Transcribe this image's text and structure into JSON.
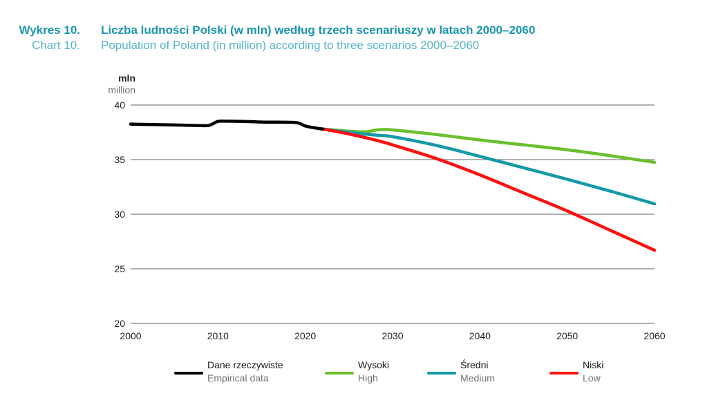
{
  "header": {
    "label_pl": "Wykres 10.",
    "title_pl": "Liczba ludności Polski (w mln) według trzech scenariuszy w latach 2000–2060",
    "label_en": "Chart 10.",
    "title_en": "Population of Poland (in million) according to three scenarios 2000–2060"
  },
  "colors": {
    "title_pl": "#1a95ad",
    "title_en": "#55b3c8",
    "grid": "#808080"
  },
  "chart_data": {
    "type": "line",
    "title": "Liczba ludności Polski (w mln) według trzech scenariuszy w latach 2000–2060 / Population of Poland (in million) according to three scenarios 2000–2060",
    "xlabel": "",
    "ylabel": "mln / million",
    "ylabel_pl": "mln",
    "ylabel_en": "million",
    "xlim": [
      2000,
      2060
    ],
    "ylim": [
      20,
      40
    ],
    "xticks": [
      2000,
      2010,
      2020,
      2030,
      2040,
      2050,
      2060
    ],
    "yticks": [
      20,
      25,
      30,
      35,
      40
    ],
    "grid": "horizontal",
    "legend_position": "bottom",
    "series": [
      {
        "name": "Dane rzeczywiste",
        "name_en": "Empirical data",
        "color": "#000000",
        "x": [
          2000,
          2002,
          2004,
          2006,
          2008,
          2009,
          2010,
          2011,
          2013,
          2015,
          2017,
          2019,
          2020,
          2021,
          2022
        ],
        "values": [
          38.25,
          38.22,
          38.19,
          38.16,
          38.12,
          38.14,
          38.5,
          38.52,
          38.5,
          38.44,
          38.43,
          38.39,
          38.08,
          37.92,
          37.8
        ]
      },
      {
        "name": "Wysoki",
        "name_en": "High",
        "color": "#6abf2f",
        "x": [
          2022,
          2025,
          2027,
          2028,
          2029,
          2030,
          2035,
          2040,
          2045,
          2050,
          2055,
          2060
        ],
        "values": [
          37.8,
          37.6,
          37.55,
          37.7,
          37.75,
          37.72,
          37.3,
          36.8,
          36.35,
          35.9,
          35.35,
          34.75
        ]
      },
      {
        "name": "Średni",
        "name_en": "Medium",
        "color": "#1599a8",
        "x": [
          2022,
          2025,
          2028,
          2030,
          2035,
          2040,
          2045,
          2050,
          2055,
          2060
        ],
        "values": [
          37.8,
          37.5,
          37.25,
          37.1,
          36.3,
          35.3,
          34.25,
          33.2,
          32.1,
          30.95
        ]
      },
      {
        "name": "Niski",
        "name_en": "Low",
        "color": "#ff0f0f",
        "x": [
          2022,
          2025,
          2028,
          2030,
          2035,
          2040,
          2045,
          2050,
          2055,
          2060
        ],
        "values": [
          37.8,
          37.35,
          36.8,
          36.35,
          35.1,
          33.6,
          31.95,
          30.3,
          28.5,
          26.7
        ]
      }
    ]
  }
}
